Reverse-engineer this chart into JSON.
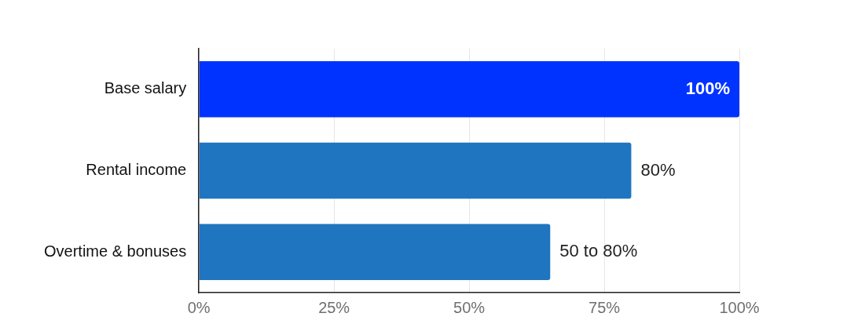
{
  "chart_data": {
    "type": "bar",
    "orientation": "horizontal",
    "categories": [
      "Base salary",
      "Rental income",
      "Overtime & bonuses"
    ],
    "values": [
      100,
      80,
      65
    ],
    "colors": [
      "#0033ff",
      "#1f75bf",
      "#1f75bf"
    ],
    "value_labels": [
      "100%",
      "80%",
      null
    ],
    "annotations": [
      {
        "text": "50 to 80%",
        "x": 65,
        "y": "Overtime & bonuses"
      }
    ],
    "xlim": [
      0,
      100
    ],
    "xticks": [
      {
        "value": 0,
        "label": "0%"
      },
      {
        "value": 25,
        "label": "25%"
      },
      {
        "value": 50,
        "label": "50%"
      },
      {
        "value": 75,
        "label": "75%"
      },
      {
        "value": 100,
        "label": "100%"
      }
    ],
    "grid": "x",
    "legend": false
  }
}
